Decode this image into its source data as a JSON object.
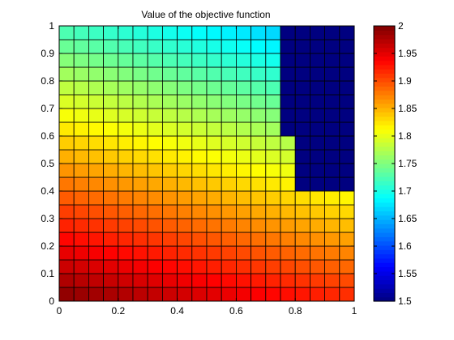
{
  "chart_data": {
    "type": "heatmap",
    "title": "Value of the objective function",
    "xlabel": "",
    "ylabel": "",
    "xlim": [
      0,
      1
    ],
    "ylim": [
      0,
      1
    ],
    "x_ticks": [
      "0",
      "0.2",
      "0.4",
      "0.6",
      "0.8",
      "1"
    ],
    "y_ticks": [
      "0",
      "0.1",
      "0.2",
      "0.3",
      "0.4",
      "0.5",
      "0.6",
      "0.7",
      "0.8",
      "0.9",
      "1"
    ],
    "grid_cells": [
      20,
      20
    ],
    "cell_value_model": "z = 2.0 - 0.08*x - 0.28*y inside feasible region; z = 1.5 in top-right infeasible region",
    "infeasible_value": 1.5,
    "infeasible_region": [
      {
        "x_range": [
          0.75,
          1.0
        ],
        "y_range": [
          0.95,
          1.0
        ]
      },
      {
        "x_range": [
          0.75,
          1.0
        ],
        "y_range": [
          0.6,
          0.95
        ]
      },
      {
        "x_range": [
          0.8,
          1.0
        ],
        "y_range": [
          0.4,
          0.6
        ]
      }
    ],
    "colorbar": {
      "colormap": "jet",
      "min": 1.5,
      "max": 2.0,
      "ticks": [
        "1.5",
        "1.55",
        "1.6",
        "1.65",
        "1.7",
        "1.75",
        "1.8",
        "1.85",
        "1.9",
        "1.95",
        "2"
      ]
    }
  }
}
